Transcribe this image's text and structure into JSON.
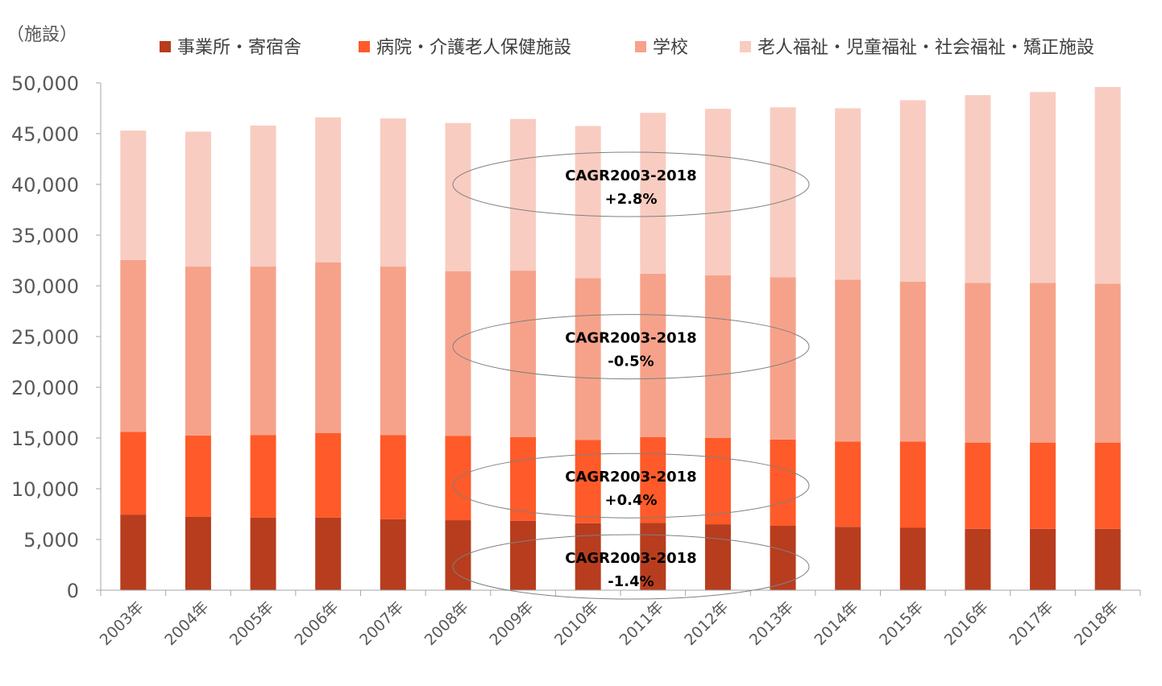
{
  "chart_data": {
    "type": "bar",
    "stacked": true,
    "unit_label": "（施設）",
    "categories": [
      "2003年",
      "2004年",
      "2005年",
      "2006年",
      "2007年",
      "2008年",
      "2009年",
      "2010年",
      "2011年",
      "2012年",
      "2013年",
      "2014年",
      "2015年",
      "2016年",
      "2017年",
      "2018年"
    ],
    "series": [
      {
        "name": "事業所・寄宿舎",
        "color": "#b73d1e",
        "values": [
          7450,
          7250,
          7150,
          7150,
          7000,
          6900,
          6850,
          6600,
          6650,
          6500,
          6350,
          6250,
          6150,
          6050,
          6050,
          6050
        ]
      },
      {
        "name": "病院・介護老人保健施設",
        "color": "#ff5a29",
        "values": [
          8150,
          8000,
          8150,
          8350,
          8300,
          8300,
          8250,
          8200,
          8450,
          8500,
          8500,
          8400,
          8500,
          8500,
          8500,
          8500
        ]
      },
      {
        "name": "学校",
        "color": "#f6a28a",
        "values": [
          16950,
          16650,
          16600,
          16800,
          16600,
          16250,
          16400,
          15950,
          16100,
          16050,
          16000,
          15950,
          15750,
          15750,
          15750,
          15650
        ]
      },
      {
        "name": "老人福祉・児童福祉・社会福祉・矯正施設",
        "color": "#f9ccc1",
        "values": [
          12750,
          13300,
          13900,
          14300,
          14600,
          14600,
          14950,
          15000,
          15850,
          16400,
          16750,
          16900,
          17900,
          18500,
          18800,
          19400
        ]
      }
    ],
    "ylim": [
      0,
      50000
    ],
    "yticks": [
      0,
      5000,
      10000,
      15000,
      20000,
      25000,
      30000,
      35000,
      40000,
      45000,
      50000
    ],
    "ytick_labels": [
      "0",
      "5,000",
      "10,000",
      "15,000",
      "20,000",
      "25,000",
      "30,000",
      "35,000",
      "40,000",
      "45,000",
      "50,000"
    ],
    "grid": false,
    "legend_position": "top",
    "annotations": [
      {
        "line1": "CAGR2003-2018",
        "line2": "+2.8%",
        "y": 40000
      },
      {
        "line1": "CAGR2003-2018",
        "line2": "-0.5%",
        "y": 24000
      },
      {
        "line1": "CAGR2003-2018",
        "line2": "+0.4%",
        "y": 10300
      },
      {
        "line1": "CAGR2003-2018",
        "line2": "-1.4%",
        "y": 2300
      }
    ]
  }
}
